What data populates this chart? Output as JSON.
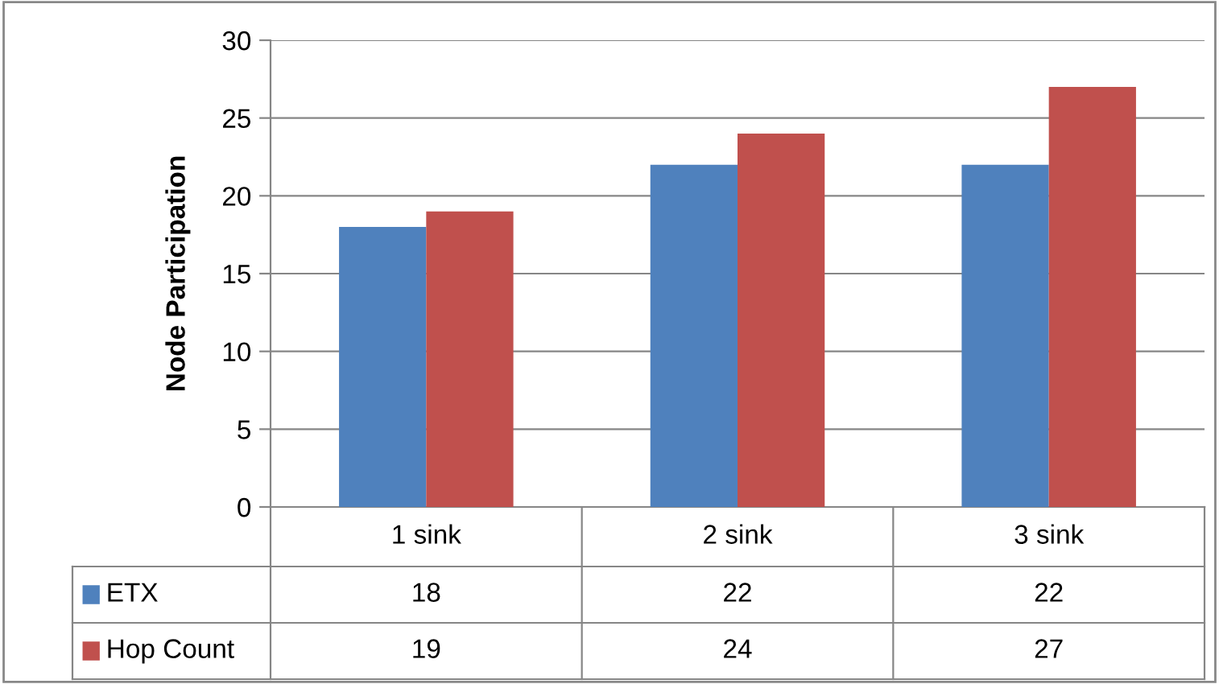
{
  "chart_data": {
    "type": "bar",
    "ylabel": "Node Participation",
    "categories": [
      "1 sink",
      "2 sink",
      "3 sink"
    ],
    "series": [
      {
        "name": "ETX",
        "color": "#4f81bd",
        "values": [
          18,
          22,
          22
        ]
      },
      {
        "name": "Hop Count",
        "color": "#c0504d",
        "values": [
          19,
          24,
          27
        ]
      }
    ],
    "ylim": [
      0,
      30
    ],
    "yticks": [
      0,
      5,
      10,
      15,
      20,
      25,
      30
    ],
    "grid": "y",
    "legend": "bottom",
    "data_labels": true
  }
}
